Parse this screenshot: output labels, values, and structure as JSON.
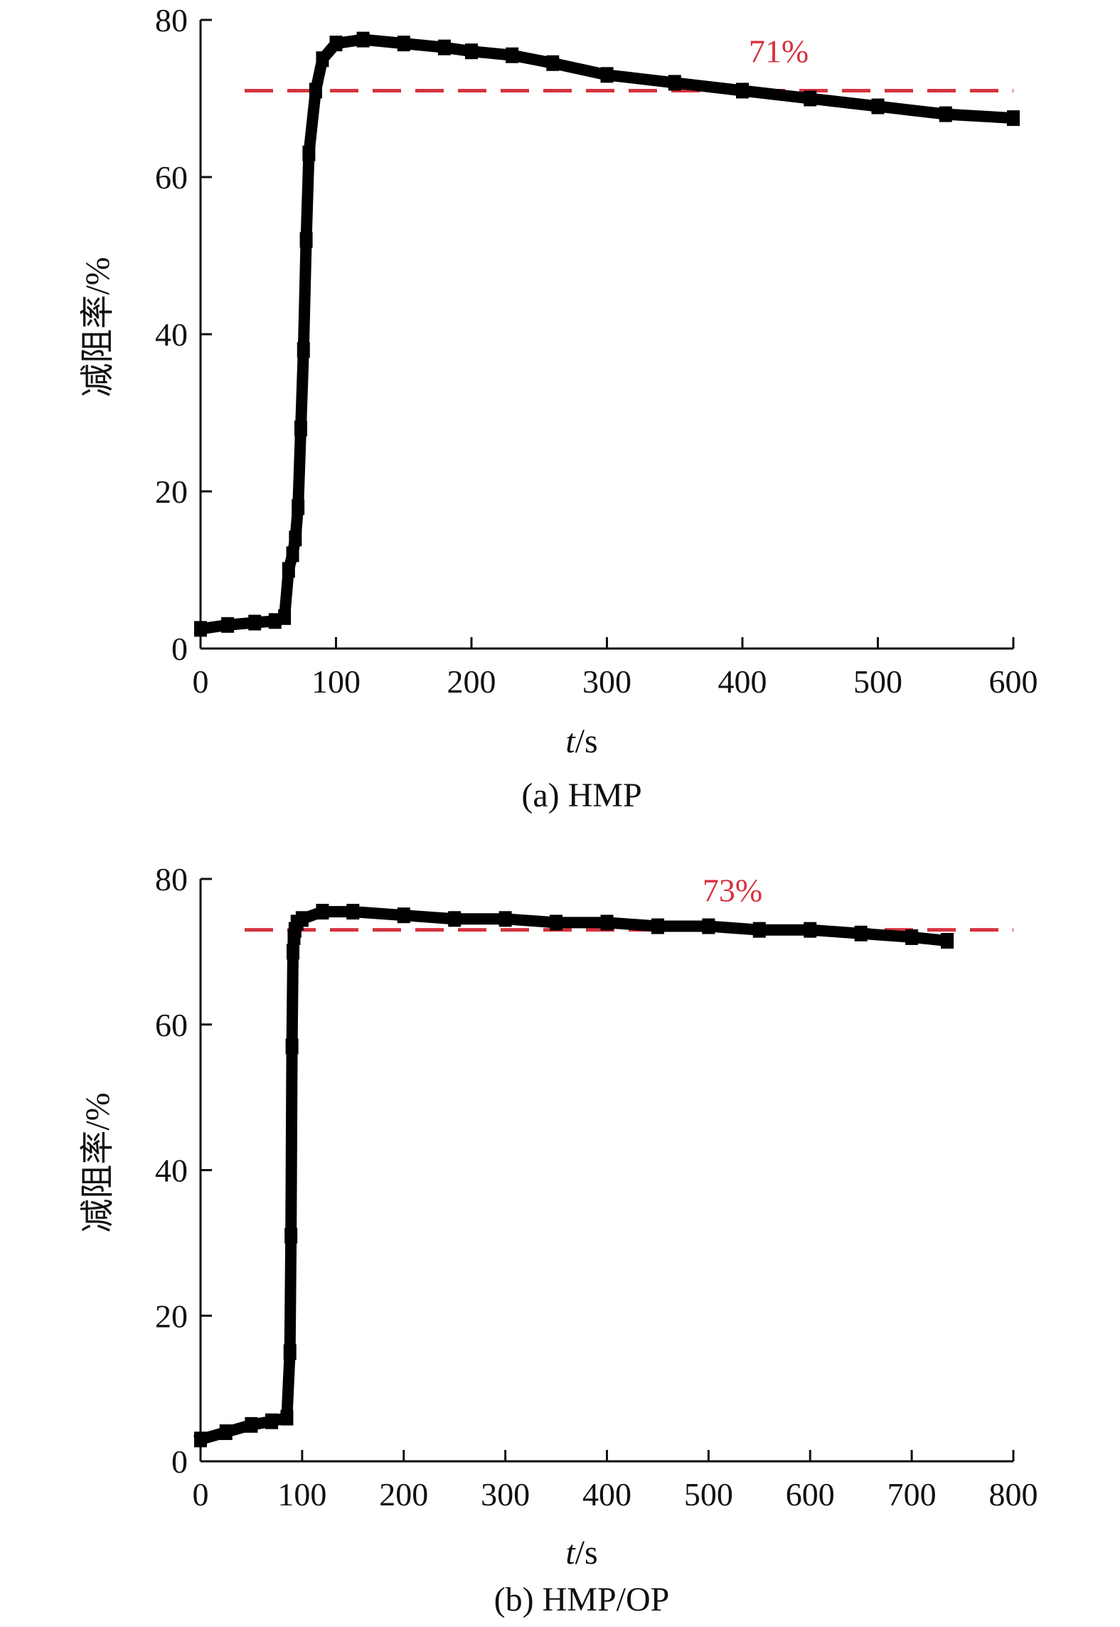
{
  "chart_data": [
    {
      "type": "line",
      "caption": "(a) HMP",
      "xlabel_var": "t",
      "xlabel_unit": "/s",
      "ylabel": "减阻率/%",
      "xlim": [
        0,
        600
      ],
      "ylim": [
        0,
        80
      ],
      "xticks": [
        0,
        100,
        200,
        300,
        400,
        500,
        600
      ],
      "yticks": [
        0,
        20,
        40,
        60,
        80
      ],
      "grid": false,
      "series": [
        {
          "x": [
            0,
            20,
            40,
            55,
            62,
            65,
            68,
            70,
            72,
            74,
            76,
            78,
            80,
            85,
            90,
            100,
            120,
            150,
            180,
            200,
            230,
            260,
            300,
            350,
            400,
            450,
            500,
            550,
            600
          ],
          "y": [
            2.5,
            3,
            3.3,
            3.5,
            4,
            10,
            12,
            14,
            18,
            28,
            38,
            52,
            63,
            71,
            75,
            77,
            77.5,
            77,
            76.5,
            76,
            75.5,
            74.5,
            73,
            72,
            71,
            70,
            69,
            68,
            67.5
          ]
        }
      ],
      "reference": {
        "y": 71,
        "label": "71%",
        "color": "#d6333f"
      },
      "line_color": "#000000"
    },
    {
      "type": "line",
      "caption": "(b) HMP/OP",
      "xlabel_var": "t",
      "xlabel_unit": "/s",
      "ylabel": "减阻率/%",
      "xlim": [
        0,
        800
      ],
      "ylim": [
        0,
        80
      ],
      "xticks": [
        0,
        100,
        200,
        300,
        400,
        500,
        600,
        700,
        800
      ],
      "yticks": [
        0,
        20,
        40,
        60,
        80
      ],
      "grid": false,
      "series": [
        {
          "x": [
            0,
            25,
            50,
            70,
            85,
            88,
            89,
            90,
            91,
            92,
            93,
            95,
            100,
            120,
            150,
            200,
            250,
            300,
            350,
            400,
            450,
            500,
            550,
            600,
            650,
            700,
            735
          ],
          "y": [
            3,
            4,
            5,
            5.5,
            6,
            15,
            31,
            57,
            70,
            72,
            73,
            74,
            74.5,
            75.5,
            75.5,
            75,
            74.5,
            74.5,
            74,
            74,
            73.5,
            73.5,
            73,
            73,
            72.5,
            72,
            71.5
          ]
        }
      ],
      "reference": {
        "y": 73,
        "label": "73%",
        "color": "#d6333f"
      },
      "line_color": "#000000"
    }
  ]
}
